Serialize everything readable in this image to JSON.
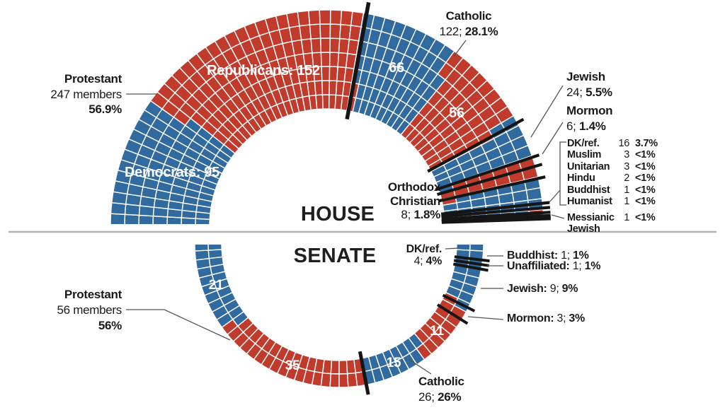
{
  "colors": {
    "republican": "#c13b2c",
    "democrat": "#316a9e",
    "tick": "#151515",
    "rule": "#b5b5b5",
    "white_grid": "#ffffff"
  },
  "chart_data": [
    {
      "type": "seat-grid-arc",
      "chamber": "HOUSE",
      "orientation": "upper-semicircle",
      "total_seats": 434,
      "rings": 7,
      "segments": [
        {
          "label": "Protestant",
          "seats": 247,
          "pct": "56.9%",
          "parties": [
            {
              "party": "Democrat",
              "seats": 95
            },
            {
              "party": "Republican",
              "seats": 152
            }
          ]
        },
        {
          "label": "Catholic",
          "seats": 122,
          "pct": "28.1%",
          "parties": [
            {
              "party": "Democrat",
              "seats": 66
            },
            {
              "party": "Republican",
              "seats": 56
            }
          ]
        },
        {
          "label": "Jewish",
          "seats": 24,
          "pct": "5.5%",
          "parties": [
            {
              "party": "Democrat",
              "seats": 24
            }
          ]
        },
        {
          "label": "Mormon",
          "seats": 6,
          "pct": "1.4%",
          "parties": [
            {
              "party": "Republican",
              "seats": 6
            }
          ]
        },
        {
          "label": "Orthodox Christian",
          "seats": 8,
          "pct": "1.8%",
          "parties": [
            {
              "party": "Republican",
              "seats": 8
            }
          ]
        },
        {
          "label": "DK/ref.",
          "seats": 16,
          "pct": "3.7%",
          "parties": [
            {
              "party": "Democrat",
              "seats": 16
            }
          ]
        },
        {
          "label": "Muslim",
          "seats": 3,
          "pct": "<1%",
          "parties": [
            {
              "party": "Democrat",
              "seats": 3
            }
          ]
        },
        {
          "label": "Unitarian",
          "seats": 3,
          "pct": "<1%",
          "parties": [
            {
              "party": "Democrat",
              "seats": 3
            }
          ]
        },
        {
          "label": "Hindu",
          "seats": 2,
          "pct": "<1%",
          "parties": [
            {
              "party": "Democrat",
              "seats": 2
            }
          ]
        },
        {
          "label": "Buddhist",
          "seats": 1,
          "pct": "<1%",
          "parties": [
            {
              "party": "Democrat",
              "seats": 1
            }
          ]
        },
        {
          "label": "Humanist",
          "seats": 1,
          "pct": "<1%",
          "parties": [
            {
              "party": "Democrat",
              "seats": 1
            }
          ]
        },
        {
          "label": "Messianic Jewish",
          "seats": 1,
          "pct": "<1%",
          "parties": [
            {
              "party": "Republican",
              "seats": 1
            }
          ]
        }
      ],
      "party_totals": [
        {
          "party": "Republicans",
          "label": "Republicans: 152"
        },
        {
          "party": "Democrats",
          "label": "Democrats: 95"
        }
      ]
    },
    {
      "type": "seat-grid-arc",
      "chamber": "SENATE",
      "orientation": "lower-semicircle",
      "total_seats": 100,
      "rings": 2,
      "segments": [
        {
          "label": "Protestant",
          "seats": 56,
          "pct": "56%",
          "parties": [
            {
              "party": "Democrat",
              "seats": 21
            },
            {
              "party": "Republican",
              "seats": 35
            }
          ]
        },
        {
          "label": "Catholic",
          "seats": 26,
          "pct": "26%",
          "parties": [
            {
              "party": "Democrat",
              "seats": 15
            },
            {
              "party": "Republican",
              "seats": 11
            }
          ]
        },
        {
          "label": "Mormon",
          "seats": 3,
          "pct": "3%",
          "parties": [
            {
              "party": "Republican",
              "seats": 3
            }
          ]
        },
        {
          "label": "Jewish",
          "seats": 9,
          "pct": "9%",
          "parties": [
            {
              "party": "Democrat",
              "seats": 9
            }
          ]
        },
        {
          "label": "Unaffiliated",
          "seats": 1,
          "pct": "1%",
          "parties": [
            {
              "party": "Democrat",
              "seats": 1
            }
          ]
        },
        {
          "label": "Buddhist",
          "seats": 1,
          "pct": "1%",
          "parties": [
            {
              "party": "Democrat",
              "seats": 1
            }
          ]
        },
        {
          "label": "DK/ref.",
          "seats": 4,
          "pct": "4%",
          "parties": [
            {
              "party": "Democrat",
              "seats": 4
            }
          ]
        }
      ]
    }
  ],
  "annotations": {
    "house": {
      "protestant": {
        "name": "Protestant",
        "members": "247 members",
        "pct": "56.9%"
      },
      "catholic": {
        "name": "Catholic",
        "count": "122; ",
        "pct": "28.1%"
      },
      "jewish": {
        "name": "Jewish",
        "count": "24; ",
        "pct": "5.5%"
      },
      "mormon": {
        "name": "Mormon",
        "count": "6; ",
        "pct": "1.4%"
      },
      "orthodox": {
        "name_line1": "Orthodox",
        "name_line2": "Christian",
        "count": "8; ",
        "pct": "1.8%"
      },
      "table": {
        "rows": [
          {
            "name": "DK/ref.",
            "count": "16",
            "pct": "3.7%"
          },
          {
            "name": "Muslim",
            "count": "3",
            "pct": "<1%"
          },
          {
            "name": "Unitarian",
            "count": "3",
            "pct": "<1%"
          },
          {
            "name": "Hindu",
            "count": "2",
            "pct": "<1%"
          },
          {
            "name": "Buddhist",
            "count": "1",
            "pct": "<1%"
          },
          {
            "name": "Humanist",
            "count": "1",
            "pct": "<1%"
          }
        ],
        "messianic": {
          "name_line1": "Messianic",
          "name_line2": "Jewish",
          "count": "1",
          "pct": "<1%"
        }
      }
    },
    "senate": {
      "protestant": {
        "name": "Protestant",
        "members": "56 members",
        "pct": "56%"
      },
      "dk_ref": {
        "name": "DK/ref.",
        "count": "4; ",
        "pct": "4%"
      },
      "buddhist": {
        "name": "Buddhist: ",
        "count": "1; ",
        "pct": "1%"
      },
      "unaffiliated": {
        "name": "Unaffiliated: ",
        "count": "1; ",
        "pct": "1%"
      },
      "jewish": {
        "name": "Jewish: ",
        "count": "9; ",
        "pct": "9%"
      },
      "mormon": {
        "name": "Mormon: ",
        "count": "3; ",
        "pct": "3%"
      },
      "catholic": {
        "name": "Catholic",
        "count": "26; ",
        "pct": "26%"
      }
    }
  }
}
